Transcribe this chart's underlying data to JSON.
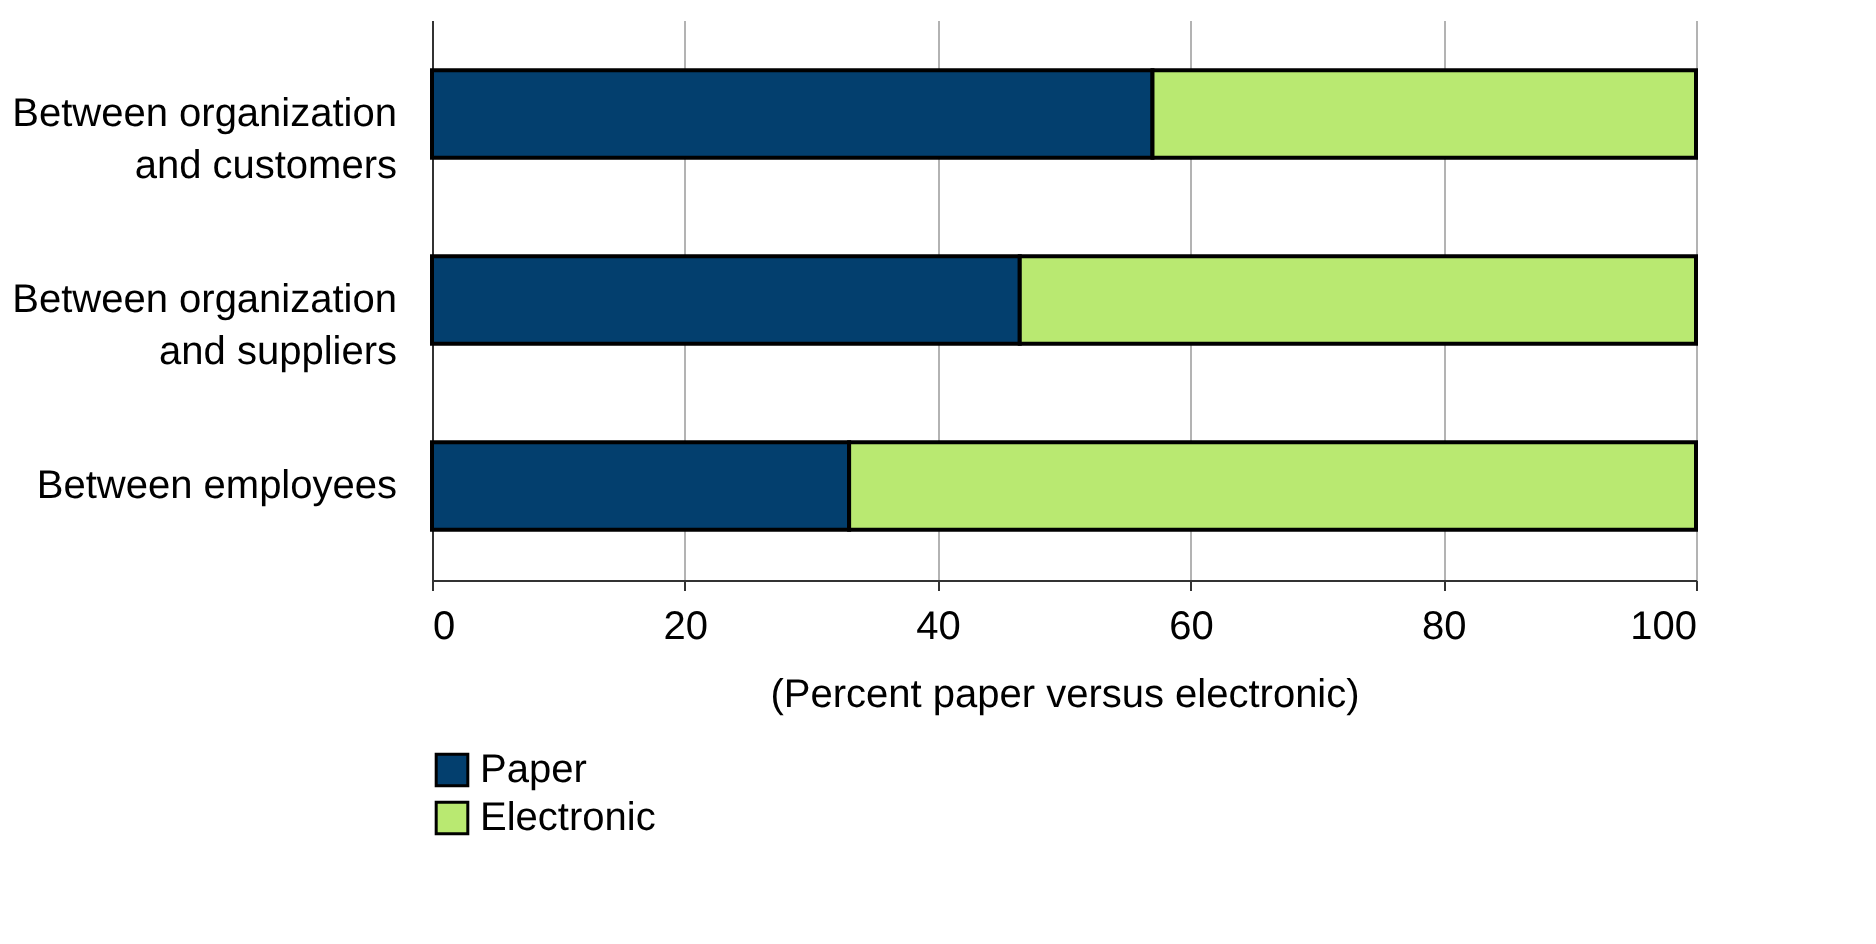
{
  "chart_data": {
    "type": "bar",
    "orientation": "horizontal",
    "stacked": true,
    "xlabel": "(Percent paper versus electronic)",
    "categories": [
      "Between organization and customers",
      "Between organization and suppliers",
      "Between employees"
    ],
    "series": [
      {
        "name": "Paper",
        "color": "#033f6e",
        "values": [
          57,
          46.5,
          33
        ]
      },
      {
        "name": "Electronic",
        "color": "#b9e971",
        "values": [
          43,
          53.5,
          67
        ]
      }
    ],
    "xlim": [
      0,
      100
    ],
    "xticks": [
      0,
      20,
      40,
      60,
      80,
      100
    ],
    "grid": "x",
    "legend": "bottom left"
  }
}
